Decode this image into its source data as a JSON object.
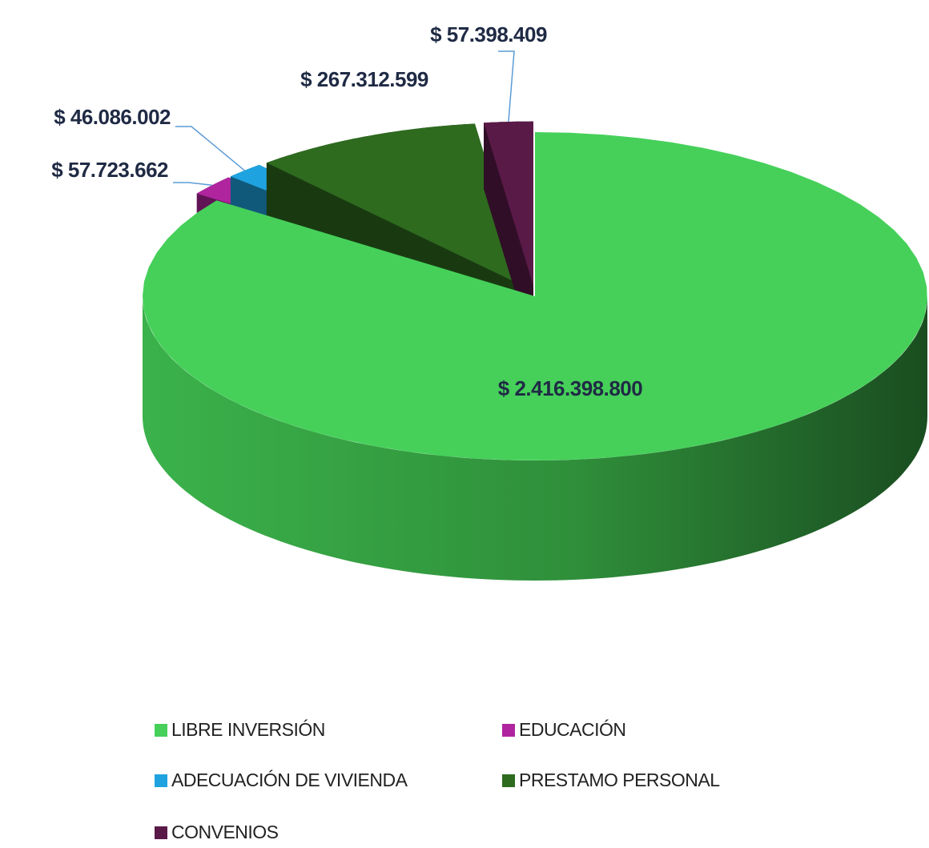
{
  "chart_data": {
    "type": "pie",
    "categories": [
      "LIBRE INVERSIÓN",
      "EDUCACIÓN",
      "ADECUACIÓN DE VIVIENDA",
      "PRESTAMO PERSONAL",
      "CONVENIOS"
    ],
    "values": [
      2416398800,
      57723662,
      46086002,
      267312599,
      57398409
    ],
    "value_labels": [
      "$ 2.416.398.800",
      "$ 57.723.662",
      "$ 46.086.002",
      "$ 267.312.599",
      "$ 57.398.409"
    ],
    "colors": [
      "#46d05a",
      "#b0259e",
      "#1fa3e0",
      "#2e6b1f",
      "#5a1a48"
    ],
    "legend": "bottom"
  }
}
